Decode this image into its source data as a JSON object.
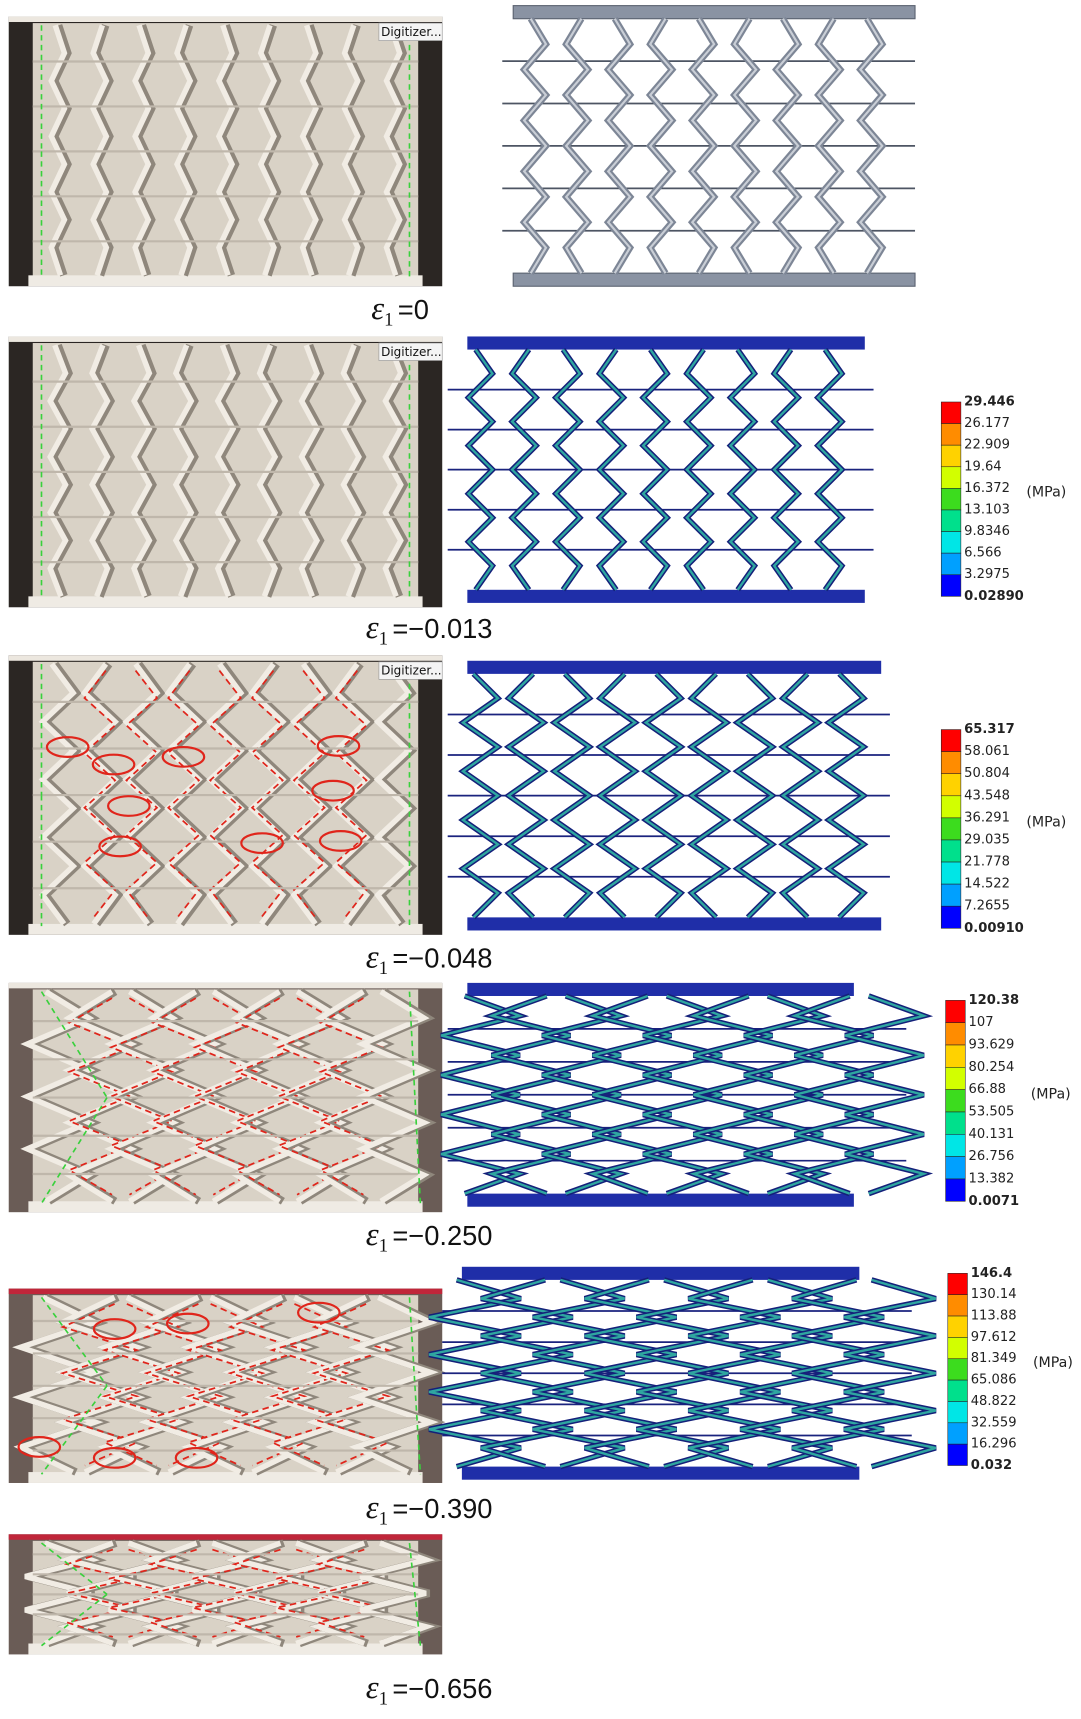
{
  "panels": [
    {
      "photo_label": "Digitizer...",
      "caption": {
        "symbol": "ε",
        "subscript": "1",
        "value": "=0"
      }
    },
    {
      "photo_label": "Digitizer...",
      "colorbar": {
        "labels": [
          "29.446",
          "26.177",
          "22.909",
          "19.64",
          "16.372",
          "13.103",
          "9.8346",
          "6.566",
          "3.2975",
          "0.02890"
        ],
        "unit": "(MPa)"
      },
      "caption": {
        "symbol": "ε",
        "subscript": "1",
        "value": "=−0.013"
      }
    },
    {
      "photo_label": "Digitizer...",
      "colorbar": {
        "labels": [
          "65.317",
          "58.061",
          "50.804",
          "43.548",
          "36.291",
          "29.035",
          "21.778",
          "14.522",
          "7.2655",
          "0.00910"
        ],
        "unit": "(MPa)"
      },
      "caption": {
        "symbol": "ε",
        "subscript": "1",
        "value": "=−0.048"
      }
    },
    {
      "colorbar": {
        "labels": [
          "120.38",
          "107",
          "93.629",
          "80.254",
          "66.88",
          "53.505",
          "40.131",
          "26.756",
          "13.382",
          "0.0071"
        ],
        "unit": "(MPa)"
      },
      "caption": {
        "symbol": "ε",
        "subscript": "1",
        "value": "=−0.250"
      }
    },
    {
      "colorbar": {
        "labels": [
          "146.4",
          "130.14",
          "113.88",
          "97.612",
          "81.349",
          "65.086",
          "48.822",
          "32.559",
          "16.296",
          "0.032"
        ],
        "unit": "(MPa)"
      },
      "caption": {
        "symbol": "ε",
        "subscript": "1",
        "value": "=−0.390"
      }
    },
    {
      "caption": {
        "symbol": "ε",
        "subscript": "1",
        "value": "=−0.656"
      }
    }
  ]
}
